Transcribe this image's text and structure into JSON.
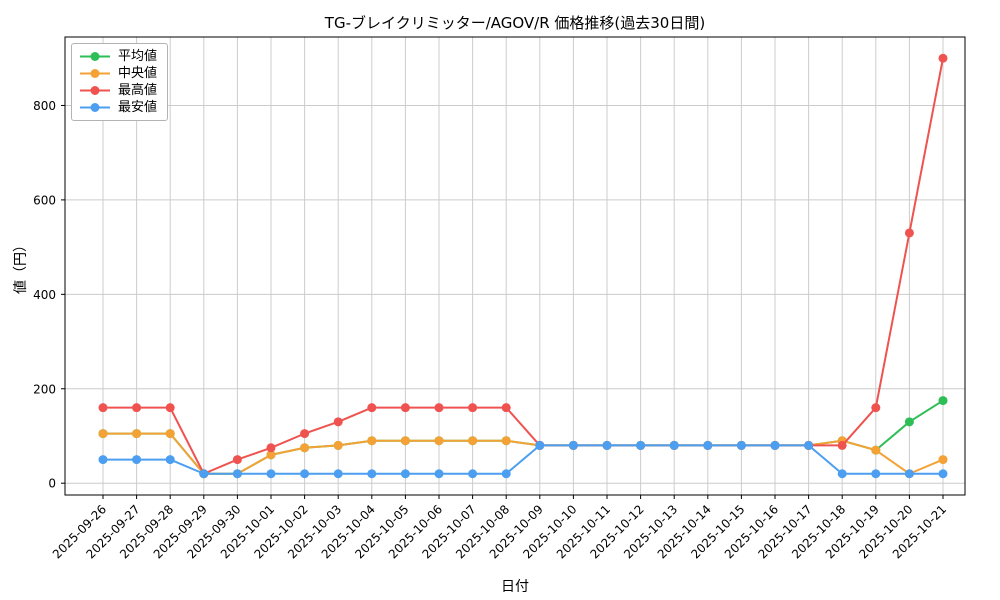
{
  "chart_data": {
    "type": "line",
    "title": "TG-ブレイクリミッター/AGOV/R 価格推移(過去30日間)",
    "xlabel": "日付",
    "ylabel": "値（円）",
    "grid": true,
    "legend_position": "upper left",
    "ylim": [
      -25,
      945
    ],
    "yticks": [
      0,
      200,
      400,
      600,
      800
    ],
    "x": [
      "2025-09-26",
      "2025-09-27",
      "2025-09-28",
      "2025-09-29",
      "2025-09-30",
      "2025-10-01",
      "2025-10-02",
      "2025-10-03",
      "2025-10-04",
      "2025-10-05",
      "2025-10-06",
      "2025-10-07",
      "2025-10-08",
      "2025-10-09",
      "2025-10-10",
      "2025-10-11",
      "2025-10-12",
      "2025-10-13",
      "2025-10-14",
      "2025-10-15",
      "2025-10-16",
      "2025-10-17",
      "2025-10-18",
      "2025-10-19",
      "2025-10-20",
      "2025-10-21"
    ],
    "series": [
      {
        "key": "average",
        "name": "平均値",
        "color": "#2dbe56",
        "values": [
          105,
          105,
          105,
          20,
          20,
          60,
          75,
          80,
          90,
          90,
          90,
          90,
          90,
          80,
          80,
          80,
          80,
          80,
          80,
          80,
          80,
          80,
          90,
          70,
          130,
          175
        ]
      },
      {
        "key": "median",
        "name": "中央値",
        "color": "#f4a236",
        "values": [
          105,
          105,
          105,
          20,
          20,
          60,
          75,
          80,
          90,
          90,
          90,
          90,
          90,
          80,
          80,
          80,
          80,
          80,
          80,
          80,
          80,
          80,
          90,
          70,
          20,
          50
        ]
      },
      {
        "key": "max",
        "name": "最高値",
        "color": "#ef5350",
        "values": [
          160,
          160,
          160,
          20,
          50,
          75,
          105,
          130,
          160,
          160,
          160,
          160,
          160,
          80,
          80,
          80,
          80,
          80,
          80,
          80,
          80,
          80,
          80,
          160,
          530,
          900
        ]
      },
      {
        "key": "min",
        "name": "最安値",
        "color": "#4c9ff0",
        "values": [
          50,
          50,
          50,
          20,
          20,
          20,
          20,
          20,
          20,
          20,
          20,
          20,
          20,
          80,
          80,
          80,
          80,
          80,
          80,
          80,
          80,
          80,
          20,
          20,
          20,
          20
        ]
      }
    ]
  }
}
